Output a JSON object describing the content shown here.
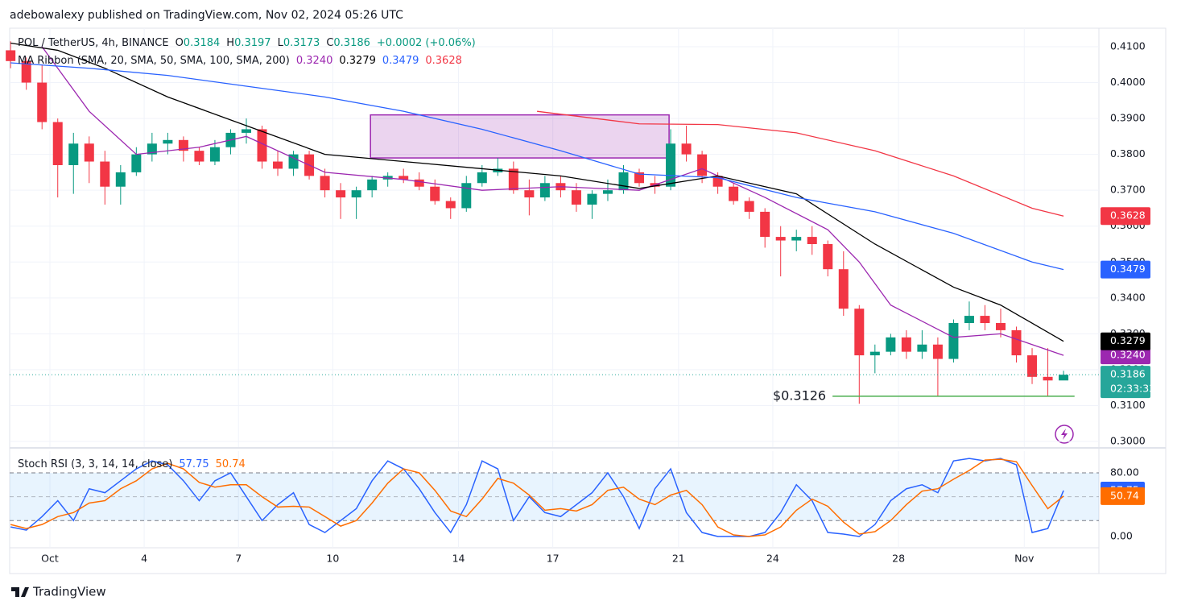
{
  "header": {
    "publisher": "adebowalexy published on TradingView.com, Nov 02, 2024 05:26 UTC",
    "brand": "TradingView"
  },
  "chart_data": [
    {
      "type": "candlestick",
      "symbol": "POL / TetherUS, 4h, BINANCE",
      "ohlc_labels": [
        "O",
        "H",
        "L",
        "C"
      ],
      "ohlc": [
        0.3184,
        0.3197,
        0.3173,
        0.3186
      ],
      "change": "+0.0002 (+0.06%)",
      "up_color": "#089981",
      "down_color": "#f23645",
      "open": [
        0.409,
        0.406,
        0.4,
        0.389,
        0.377,
        0.383,
        0.378,
        0.371,
        0.375,
        0.38,
        0.383,
        0.384,
        0.381,
        0.378,
        0.382,
        0.386,
        0.387,
        0.378,
        0.376,
        0.38,
        0.374,
        0.37,
        0.368,
        0.37,
        0.373,
        0.374,
        0.373,
        0.371,
        0.367,
        0.365,
        0.372,
        0.375,
        0.376,
        0.37,
        0.368,
        0.372,
        0.37,
        0.366,
        0.369,
        0.37,
        0.375,
        0.372,
        0.371,
        0.383,
        0.38,
        0.374,
        0.371,
        0.367,
        0.364,
        0.357,
        0.356,
        0.357,
        0.355,
        0.348,
        0.337,
        0.324,
        0.325,
        0.329,
        0.325,
        0.327,
        0.323,
        0.333,
        0.335,
        0.333,
        0.331,
        0.324,
        0.318,
        0.317
      ],
      "high": [
        0.4115,
        0.407,
        0.405,
        0.39,
        0.386,
        0.385,
        0.381,
        0.377,
        0.382,
        0.386,
        0.386,
        0.385,
        0.382,
        0.384,
        0.387,
        0.39,
        0.388,
        0.381,
        0.381,
        0.381,
        0.376,
        0.372,
        0.371,
        0.374,
        0.375,
        0.376,
        0.375,
        0.373,
        0.368,
        0.374,
        0.377,
        0.379,
        0.378,
        0.373,
        0.374,
        0.374,
        0.372,
        0.37,
        0.373,
        0.377,
        0.376,
        0.374,
        0.387,
        0.388,
        0.381,
        0.375,
        0.372,
        0.368,
        0.365,
        0.36,
        0.359,
        0.36,
        0.356,
        0.353,
        0.338,
        0.327,
        0.33,
        0.331,
        0.331,
        0.329,
        0.334,
        0.339,
        0.338,
        0.337,
        0.332,
        0.326,
        0.326,
        0.3197
      ],
      "low": [
        0.404,
        0.398,
        0.387,
        0.368,
        0.369,
        0.372,
        0.366,
        0.366,
        0.374,
        0.378,
        0.38,
        0.378,
        0.377,
        0.377,
        0.38,
        0.383,
        0.376,
        0.374,
        0.374,
        0.373,
        0.368,
        0.362,
        0.362,
        0.368,
        0.371,
        0.372,
        0.37,
        0.366,
        0.362,
        0.364,
        0.371,
        0.374,
        0.369,
        0.363,
        0.367,
        0.368,
        0.364,
        0.362,
        0.367,
        0.369,
        0.371,
        0.369,
        0.37,
        0.378,
        0.372,
        0.369,
        0.366,
        0.362,
        0.354,
        0.346,
        0.353,
        0.352,
        0.346,
        0.335,
        0.3105,
        0.319,
        0.324,
        0.323,
        0.323,
        0.3126,
        0.322,
        0.331,
        0.331,
        0.329,
        0.322,
        0.316,
        0.3126,
        0.3173
      ],
      "close": [
        0.406,
        0.4,
        0.389,
        0.377,
        0.383,
        0.378,
        0.371,
        0.375,
        0.38,
        0.383,
        0.384,
        0.381,
        0.378,
        0.382,
        0.386,
        0.387,
        0.378,
        0.376,
        0.38,
        0.374,
        0.37,
        0.368,
        0.37,
        0.373,
        0.374,
        0.373,
        0.371,
        0.367,
        0.365,
        0.372,
        0.375,
        0.376,
        0.37,
        0.368,
        0.372,
        0.37,
        0.366,
        0.369,
        0.37,
        0.375,
        0.372,
        0.371,
        0.383,
        0.38,
        0.374,
        0.371,
        0.367,
        0.364,
        0.357,
        0.356,
        0.357,
        0.355,
        0.348,
        0.337,
        0.324,
        0.325,
        0.329,
        0.325,
        0.327,
        0.323,
        0.333,
        0.335,
        0.333,
        0.331,
        0.324,
        0.318,
        0.317,
        0.3186
      ],
      "ma_ribbon": {
        "label": "MA Ribbon (SMA, 20, SMA, 50, SMA, 100, SMA, 200)",
        "series": [
          {
            "color": "#9c27b0",
            "last": {
              "value": 0.324,
              "label": "0.3240"
            },
            "x": [
              2,
              5,
              8,
              12,
              15,
              20,
              25,
              30,
              35,
              40,
              44,
              48,
              52,
              54,
              56,
              60,
              63,
              65,
              67
            ],
            "values": [
              0.41,
              0.392,
              0.38,
              0.382,
              0.385,
              0.375,
              0.373,
              0.37,
              0.371,
              0.37,
              0.376,
              0.368,
              0.359,
              0.35,
              0.338,
              0.329,
              0.33,
              0.327,
              0.324
            ]
          },
          {
            "color": "#000000",
            "last": {
              "value": 0.3279,
              "label": "0.3279"
            },
            "x": [
              0,
              3,
              6,
              10,
              15,
              20,
              25,
              30,
              35,
              40,
              45,
              50,
              55,
              60,
              63,
              67
            ],
            "values": [
              0.411,
              0.409,
              0.404,
              0.396,
              0.388,
              0.38,
              0.378,
              0.376,
              0.374,
              0.3705,
              0.374,
              0.369,
              0.355,
              0.343,
              0.338,
              0.3279
            ]
          },
          {
            "color": "#2962ff",
            "last": {
              "value": 0.3479,
              "label": "0.3479"
            },
            "x": [
              0,
              5,
              10,
              15,
              20,
              25,
              30,
              35,
              40,
              45,
              50,
              55,
              60,
              65,
              67
            ],
            "values": [
              0.4055,
              0.404,
              0.402,
              0.399,
              0.396,
              0.392,
              0.387,
              0.381,
              0.3745,
              0.3735,
              0.368,
              0.364,
              0.358,
              0.35,
              0.3479
            ]
          },
          {
            "color": "#f23645",
            "last": {
              "value": 0.3628,
              "label": "0.3628"
            },
            "x": [
              33.5,
              40,
              45,
              50,
              55,
              60,
              65,
              67
            ],
            "values": [
              0.392,
              0.3885,
              0.3883,
              0.386,
              0.381,
              0.374,
              0.365,
              0.3628
            ]
          }
        ]
      },
      "last_price": {
        "value": 0.3186,
        "label": "0.3186",
        "countdown": "02:33:33",
        "color": "#26a69a"
      },
      "zone": {
        "x": [
          22.9,
          41.9
        ],
        "y": [
          0.379,
          0.391
        ]
      },
      "support": {
        "value": 0.3126,
        "label": "$0.3126",
        "x": [
          52.3,
          67.7
        ],
        "color": "#4caf50"
      },
      "xlim": [
        -0.06,
        69.25
      ],
      "xticks": [
        {
          "value": 2.5,
          "label": "Oct"
        },
        {
          "value": 8.5,
          "label": "4"
        },
        {
          "value": 14.5,
          "label": "7"
        },
        {
          "value": 20.5,
          "label": "10"
        },
        {
          "value": 28.5,
          "label": "14"
        },
        {
          "value": 34.5,
          "label": "17"
        },
        {
          "value": 42.5,
          "label": "21"
        },
        {
          "value": 48.5,
          "label": "24"
        },
        {
          "value": 56.5,
          "label": "28"
        },
        {
          "value": 64.5,
          "label": "Nov"
        }
      ],
      "ylim": [
        0.29843,
        0.41516
      ],
      "yticks": [
        {
          "value": 0.3,
          "label": "0.3000"
        },
        {
          "value": 0.31,
          "label": "0.3100"
        },
        {
          "value": 0.32,
          "label": "0.3200"
        },
        {
          "value": 0.33,
          "label": "0.3300"
        },
        {
          "value": 0.34,
          "label": "0.3400"
        },
        {
          "value": 0.35,
          "label": "0.3500"
        },
        {
          "value": 0.36,
          "label": "0.3600"
        },
        {
          "value": 0.37,
          "label": "0.3700"
        },
        {
          "value": 0.38,
          "label": "0.3800"
        },
        {
          "value": 0.39,
          "label": "0.3900"
        },
        {
          "value": 0.4,
          "label": "0.4000"
        },
        {
          "value": 0.41,
          "label": "0.4100"
        }
      ],
      "grid": true
    },
    {
      "type": "line",
      "title": "Stoch RSI (3, 3, 14, 14, close)",
      "series": [
        {
          "name": "57.75",
          "color": "#2962ff",
          "values": [
            12,
            8,
            25,
            45,
            20,
            60,
            55,
            70,
            85,
            95,
            90,
            70,
            45,
            70,
            80,
            50,
            20,
            40,
            55,
            15,
            5,
            20,
            35,
            70,
            95,
            85,
            60,
            30,
            5,
            40,
            95,
            85,
            20,
            50,
            30,
            25,
            40,
            55,
            80,
            50,
            10,
            60,
            85,
            30,
            5,
            0,
            0,
            0,
            5,
            30,
            65,
            45,
            5,
            3,
            0,
            15,
            45,
            60,
            65,
            55,
            95,
            98,
            95,
            98,
            90,
            5,
            10,
            57.75
          ]
        },
        {
          "name": "50.74",
          "color": "#ff6d00",
          "values": [
            15,
            10,
            15,
            25,
            30,
            42,
            45,
            60,
            70,
            85,
            92,
            85,
            68,
            62,
            65,
            65,
            50,
            37,
            38,
            37,
            25,
            13,
            20,
            42,
            67,
            85,
            80,
            58,
            32,
            25,
            47,
            73,
            67,
            52,
            33,
            35,
            32,
            40,
            58,
            62,
            47,
            40,
            52,
            58,
            40,
            12,
            2,
            0,
            2,
            12,
            33,
            47,
            38,
            18,
            3,
            6,
            20,
            40,
            57,
            60,
            72,
            83,
            96,
            97,
            94,
            64,
            35,
            50.74
          ]
        }
      ],
      "band_lines": [
        20,
        50,
        80
      ],
      "ylim": [
        -14.2,
        107.3
      ],
      "yticks": [
        {
          "value": 0,
          "label": "0.00"
        },
        {
          "value": 80,
          "label": "80.00"
        }
      ]
    }
  ]
}
